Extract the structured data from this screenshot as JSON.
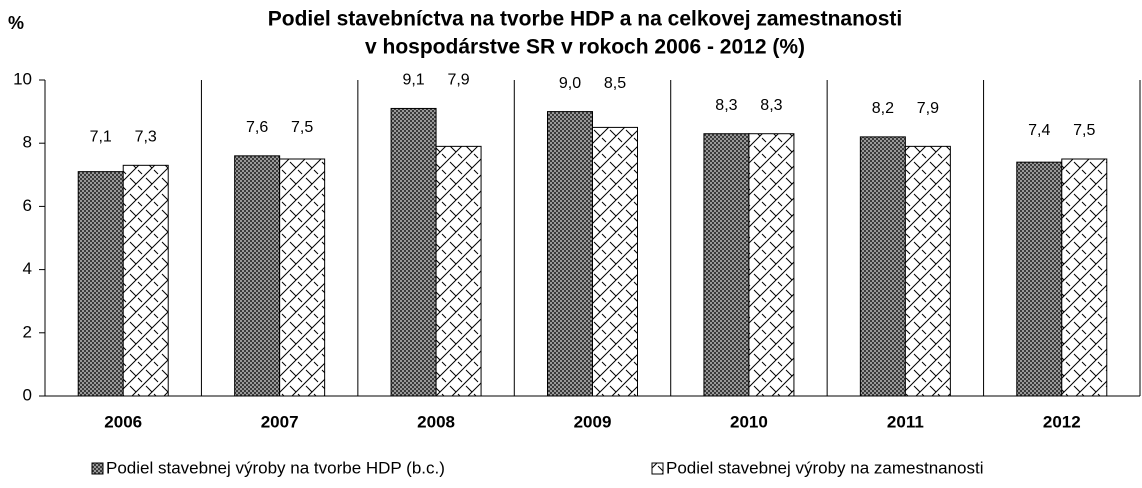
{
  "chart_data": {
    "type": "bar",
    "title": [
      "Podiel stavebníctva na tvorbe HDP a na celkovej zamestnanosti",
      "v hospodárstve SR v rokoch 2006 - 2012 (%)"
    ],
    "y_label": "%",
    "categories": [
      "2006",
      "2007",
      "2008",
      "2009",
      "2010",
      "2011",
      "2012"
    ],
    "series": [
      {
        "name": "Podiel stavebnej výroby na tvorbe HDP (b.c.)",
        "color": "#3a3a3a",
        "values": [
          7.1,
          7.6,
          9.1,
          9.0,
          8.3,
          8.2,
          7.4
        ],
        "value_labels": [
          "7,1",
          "7,6",
          "9,1",
          "9,0",
          "8,3",
          "8,2",
          "7,4"
        ]
      },
      {
        "name": "Podiel stavebnej výroby na zamestnanosti",
        "color": "#ffffff",
        "values": [
          7.3,
          7.5,
          7.9,
          8.5,
          8.3,
          7.9,
          7.5
        ],
        "value_labels": [
          "7,3",
          "7,5",
          "7,9",
          "8,5",
          "8,3",
          "7,9",
          "7,5"
        ]
      }
    ],
    "ylim": [
      0,
      10
    ],
    "yticks": [
      0,
      2,
      4,
      6,
      8,
      10
    ],
    "grid": false,
    "category_dividers": true
  }
}
